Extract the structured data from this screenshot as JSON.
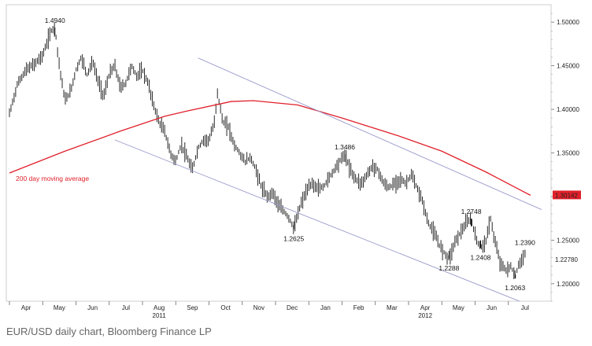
{
  "chart_data": {
    "type": "ohlc-line",
    "caption": "EUR/USD daily chart, Bloomberg Finance LP",
    "x_months": [
      "Apr",
      "May",
      "Jun",
      "Jul",
      "Aug",
      "Sep",
      "Oct",
      "Nov",
      "Dec",
      "Jan",
      "Feb",
      "Mar",
      "Apr",
      "May",
      "Jun",
      "Jul"
    ],
    "x_years": [
      {
        "label": "2011",
        "month_index": 4
      },
      {
        "label": "2012",
        "month_index": 12
      }
    ],
    "ylim": [
      1.18,
      1.52
    ],
    "y_ticks": [
      "1.50000",
      "1.45000",
      "1.40000",
      "1.35000",
      "1.30000",
      "1.25000",
      "1.20000"
    ],
    "price_path": [
      [
        0,
        1.395
      ],
      [
        1.5,
        1.43
      ],
      [
        3,
        1.445
      ],
      [
        4.5,
        1.452
      ],
      [
        6,
        1.462
      ],
      [
        7.5,
        1.49
      ],
      [
        8.2,
        1.494
      ],
      [
        9,
        1.45
      ],
      [
        10,
        1.41
      ],
      [
        11,
        1.42
      ],
      [
        12,
        1.445
      ],
      [
        13,
        1.46
      ],
      [
        14,
        1.44
      ],
      [
        15,
        1.455
      ],
      [
        16,
        1.432
      ],
      [
        17,
        1.415
      ],
      [
        18,
        1.44
      ],
      [
        19,
        1.45
      ],
      [
        20,
        1.425
      ],
      [
        21,
        1.43
      ],
      [
        22,
        1.45
      ],
      [
        23,
        1.438
      ],
      [
        24,
        1.445
      ],
      [
        25,
        1.43
      ],
      [
        26,
        1.405
      ],
      [
        27,
        1.385
      ],
      [
        28,
        1.375
      ],
      [
        29,
        1.35
      ],
      [
        30,
        1.34
      ],
      [
        31,
        1.36
      ],
      [
        32,
        1.345
      ],
      [
        33,
        1.33
      ],
      [
        34,
        1.355
      ],
      [
        35,
        1.365
      ],
      [
        36,
        1.365
      ],
      [
        37,
        1.385
      ],
      [
        37.5,
        1.42
      ],
      [
        38.5,
        1.385
      ],
      [
        39.5,
        1.38
      ],
      [
        40.5,
        1.36
      ],
      [
        41.5,
        1.35
      ],
      [
        42.5,
        1.34
      ],
      [
        43.5,
        1.345
      ],
      [
        44.5,
        1.33
      ],
      [
        45.5,
        1.31
      ],
      [
        46.5,
        1.3
      ],
      [
        47.5,
        1.305
      ],
      [
        48.5,
        1.29
      ],
      [
        49.5,
        1.283
      ],
      [
        50.5,
        1.275
      ],
      [
        51.3,
        1.2625
      ],
      [
        52.5,
        1.29
      ],
      [
        53.5,
        1.305
      ],
      [
        54.5,
        1.315
      ],
      [
        55.5,
        1.31
      ],
      [
        56.5,
        1.31
      ],
      [
        57.5,
        1.32
      ],
      [
        58.5,
        1.33
      ],
      [
        59.5,
        1.34
      ],
      [
        60.5,
        1.3486
      ],
      [
        61.5,
        1.33
      ],
      [
        62.5,
        1.32
      ],
      [
        63.5,
        1.315
      ],
      [
        64.5,
        1.325
      ],
      [
        65.5,
        1.335
      ],
      [
        66.5,
        1.33
      ],
      [
        67.5,
        1.315
      ],
      [
        68.5,
        1.31
      ],
      [
        69.5,
        1.315
      ],
      [
        70.5,
        1.32
      ],
      [
        71.5,
        1.315
      ],
      [
        72.5,
        1.325
      ],
      [
        73.5,
        1.31
      ],
      [
        74.5,
        1.295
      ],
      [
        75.5,
        1.27
      ],
      [
        76.5,
        1.26
      ],
      [
        77.5,
        1.245
      ],
      [
        78.5,
        1.235
      ],
      [
        79.3,
        1.2288
      ],
      [
        80.5,
        1.25
      ],
      [
        81.5,
        1.26
      ],
      [
        82.5,
        1.27
      ],
      [
        83.3,
        1.2748
      ],
      [
        84,
        1.255
      ],
      [
        85,
        1.2408
      ],
      [
        86,
        1.25
      ],
      [
        86.8,
        1.275
      ],
      [
        87.5,
        1.25
      ],
      [
        88.5,
        1.225
      ],
      [
        89.5,
        1.215
      ],
      [
        90.5,
        1.22
      ],
      [
        91.2,
        1.2063
      ],
      [
        92,
        1.225
      ],
      [
        92.8,
        1.2278
      ]
    ],
    "price_last_label": "1.22780",
    "moving_average": {
      "name": "200 day moving average",
      "color": "#e0202a",
      "points": [
        [
          0,
          1.327
        ],
        [
          10,
          1.352
        ],
        [
          20,
          1.375
        ],
        [
          28,
          1.392
        ],
        [
          32,
          1.398
        ],
        [
          40,
          1.409
        ],
        [
          44,
          1.41
        ],
        [
          52,
          1.405
        ],
        [
          60,
          1.39
        ],
        [
          70,
          1.37
        ],
        [
          78,
          1.352
        ],
        [
          86,
          1.328
        ],
        [
          92,
          1.308
        ],
        [
          94,
          1.3014
        ]
      ],
      "last_label": "1.30142"
    },
    "channel": {
      "color": "#9999cc",
      "upper": [
        [
          34,
          1.459
        ],
        [
          96,
          1.285
        ]
      ],
      "lower": [
        [
          19,
          1.365
        ],
        [
          92,
          1.175
        ]
      ]
    },
    "annotations": [
      {
        "label": "1.4940",
        "x": 8.2,
        "y": 1.494,
        "pos": "above"
      },
      {
        "label": "1.3486",
        "x": 60.5,
        "y": 1.3486,
        "pos": "above"
      },
      {
        "label": "1.2625",
        "x": 51.3,
        "y": 1.2625,
        "pos": "below"
      },
      {
        "label": "1.2748",
        "x": 83.3,
        "y": 1.2748,
        "pos": "above"
      },
      {
        "label": "1.2288",
        "x": 79.3,
        "y": 1.2288,
        "pos": "below"
      },
      {
        "label": "1.2408",
        "x": 85,
        "y": 1.2408,
        "pos": "below"
      },
      {
        "label": "1.2390",
        "x": 93,
        "y": 1.239,
        "pos": "above"
      },
      {
        "label": "1.2063",
        "x": 91.2,
        "y": 1.2063,
        "pos": "below"
      }
    ]
  }
}
